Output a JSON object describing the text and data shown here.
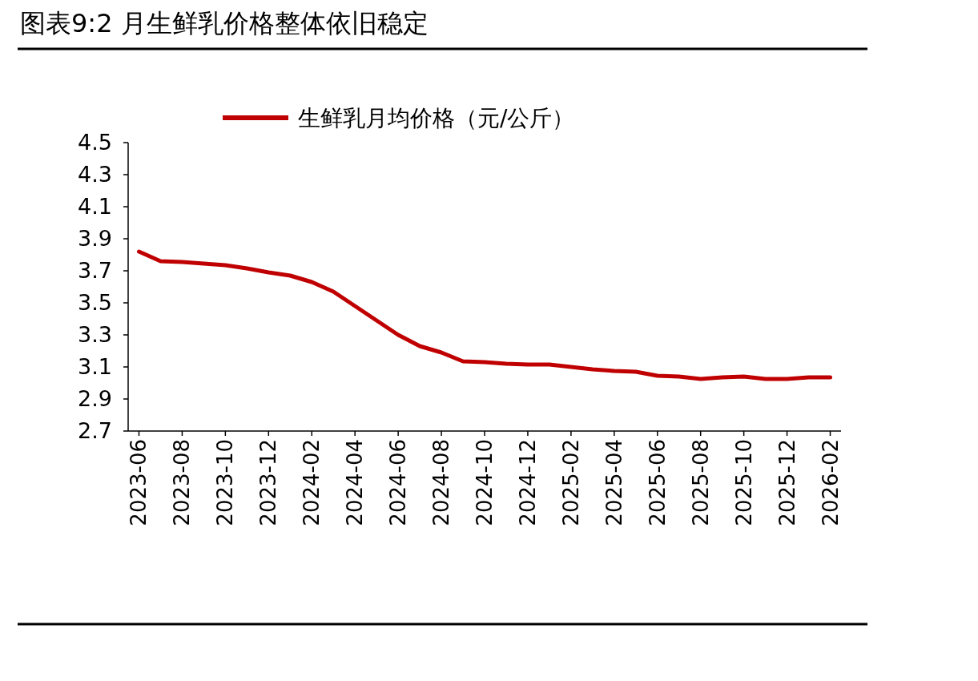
{
  "chart_data": {
    "type": "line",
    "title": "图表9:2 月生鲜乳价格整体依旧稳定",
    "legend": "top",
    "categories": [
      "2023-06",
      null,
      "2023-08",
      null,
      "2023-10",
      null,
      "2023-12",
      null,
      "2024-02",
      null,
      "2024-04",
      null,
      "2024-06",
      null,
      "2024-08",
      null,
      "2024-10",
      null,
      "2024-12",
      null,
      "2025-02",
      null,
      "2025-04",
      null,
      "2025-06",
      null,
      "2025-08",
      null,
      "2025-10",
      null,
      "2025-12",
      null,
      "2026-02"
    ],
    "series": [
      {
        "name": "生鲜乳月均价格（元/公斤）",
        "color": "#c00000",
        "values": [
          3.82,
          3.76,
          3.755,
          3.745,
          3.735,
          3.715,
          3.69,
          3.67,
          3.63,
          3.57,
          3.48,
          3.39,
          3.3,
          3.23,
          3.19,
          3.135,
          3.13,
          3.12,
          3.115,
          3.115,
          3.1,
          3.085,
          3.075,
          3.07,
          3.045,
          3.04,
          3.025,
          3.035,
          3.04,
          3.025,
          3.025,
          3.035,
          3.035
        ]
      }
    ],
    "ylim": [
      2.7,
      4.5
    ],
    "yticks": [
      2.7,
      2.9,
      3.1,
      3.3,
      3.5,
      3.7,
      3.9,
      4.1,
      4.3,
      4.5
    ]
  }
}
